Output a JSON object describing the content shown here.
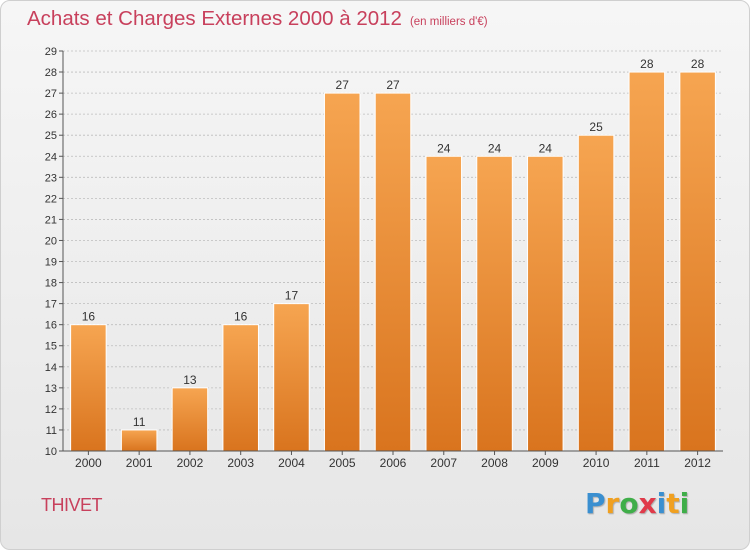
{
  "chart_data": {
    "type": "bar",
    "title": "Achats et Charges Externes 2000 à 2012",
    "subtitle": "(en milliers d'€)",
    "categories": [
      "2000",
      "2001",
      "2002",
      "2003",
      "2004",
      "2005",
      "2006",
      "2007",
      "2008",
      "2009",
      "2010",
      "2011",
      "2012"
    ],
    "values": [
      16,
      11,
      13,
      16,
      17,
      27,
      27,
      24,
      24,
      24,
      25,
      28,
      28
    ],
    "ylim": [
      10,
      29
    ],
    "yticks": [
      10,
      11,
      12,
      13,
      14,
      15,
      16,
      17,
      18,
      19,
      20,
      21,
      22,
      23,
      24,
      25,
      26,
      27,
      28,
      29
    ],
    "grid": true,
    "bar_color_top": "#f6a551",
    "bar_color_bottom": "#d9741e",
    "grid_color": "#bdbdbd"
  },
  "location": "THIVET",
  "logo": {
    "letters": [
      "P",
      "r",
      "o",
      "x",
      "i",
      "t",
      "i"
    ],
    "colors": [
      "#3a8fd0",
      "#f0a020",
      "#3fae49",
      "#e03a4a",
      "#3a8fd0",
      "#f0a020",
      "#3fae49"
    ]
  }
}
